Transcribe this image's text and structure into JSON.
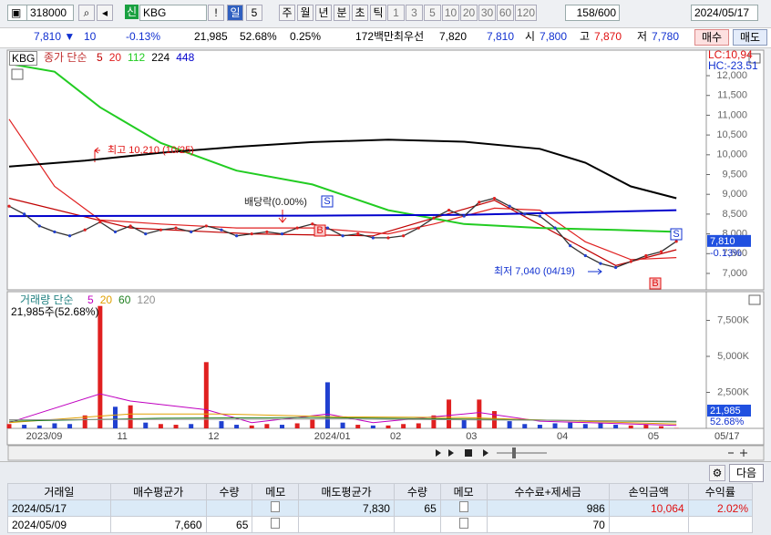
{
  "toolbar": {
    "code": "318000",
    "market": "신",
    "name": "KBG",
    "alert": "!",
    "period": "일",
    "count": "5",
    "periods": [
      "주",
      "월",
      "년",
      "분",
      "초",
      "틱"
    ],
    "intervals": [
      "1",
      "3",
      "5",
      "10",
      "20",
      "30",
      "60",
      "120"
    ],
    "range": "158/600",
    "date": "2024/05/17"
  },
  "quote": {
    "price": "7,810 ▼",
    "change": "10",
    "change_pct": "-0.13%",
    "volume": "21,985",
    "volume_ratio": "52.68%",
    "turnover": "0.25%",
    "amount": "172백만",
    "best_label": "최우선",
    "ask": "7,820",
    "bid": "7,810",
    "open_label": "시",
    "open": "7,800",
    "high_label": "고",
    "high": "7,870",
    "low_label": "저",
    "low": "7,780",
    "buy": "매수",
    "sell": "매도"
  },
  "chart_data": [
    {
      "type": "line",
      "symbol": "KBG",
      "legend_label": "종가 단순",
      "lc": "LC:10,94",
      "hc": "HC:-23.51",
      "categories": [
        null,
        "2023/09",
        null,
        null,
        null,
        null,
        null,
        "11",
        null,
        null,
        null,
        null,
        null,
        "12",
        null,
        null,
        null,
        null,
        null,
        null,
        "2024/01",
        null,
        null,
        null,
        null,
        "02",
        null,
        null,
        null,
        null,
        "03",
        null,
        null,
        null,
        null,
        null,
        "04",
        null,
        null,
        null,
        null,
        null,
        "05",
        null,
        null
      ],
      "end_label": "05/17",
      "values": [
        8700,
        8500,
        8200,
        8050,
        7950,
        8100,
        8300,
        8050,
        8200,
        8000,
        8100,
        8150,
        8050,
        8200,
        8100,
        7950,
        8000,
        8050,
        8000,
        8150,
        8250,
        8150,
        7950,
        8000,
        7900,
        7900,
        7950,
        8150,
        8400,
        8600,
        8450,
        8800,
        8900,
        8700,
        8500,
        8450,
        8150,
        7700,
        7450,
        7250,
        7150,
        7300,
        7450,
        7550,
        7810
      ],
      "color": "#333333",
      "series": [
        {
          "name": "5",
          "color": "#c00000",
          "x": [
            0,
            8,
            16,
            24,
            32,
            40,
            44
          ],
          "values": [
            8900,
            8150,
            8000,
            7950,
            8850,
            7200,
            7600
          ]
        },
        {
          "name": "20",
          "color": "#e02020",
          "x": [
            0,
            3,
            6,
            10,
            15,
            20,
            25,
            28,
            32,
            35,
            38,
            41,
            44
          ],
          "values": [
            10900,
            9200,
            8350,
            8250,
            8150,
            8150,
            8000,
            8250,
            8650,
            8600,
            7800,
            7350,
            7400
          ]
        },
        {
          "name": "112",
          "color": "#22cc22",
          "x": [
            0,
            3,
            6,
            10,
            15,
            20,
            25,
            30,
            35,
            40,
            44
          ],
          "values": [
            12300,
            12100,
            11200,
            10300,
            9600,
            9250,
            8600,
            8250,
            8150,
            8100,
            8050
          ]
        },
        {
          "name": "224",
          "color": "#000000",
          "x": [
            0,
            5,
            10,
            15,
            20,
            25,
            30,
            35,
            38,
            41,
            44
          ],
          "values": [
            9700,
            9850,
            10050,
            10200,
            10320,
            10380,
            10330,
            10150,
            9800,
            9200,
            8900
          ]
        },
        {
          "name": "448",
          "color": "#0000cc",
          "x": [
            0,
            20,
            30,
            44
          ],
          "values": [
            8450,
            8460,
            8480,
            8600
          ]
        }
      ],
      "ylim": [
        6585,
        12600
      ],
      "yticks": [
        {
          "value": 7000,
          "label": "7,000"
        },
        {
          "value": 7500,
          "label": "7,500"
        },
        {
          "value": 8000,
          "label": "8,000"
        },
        {
          "value": 8500,
          "label": "8,500"
        },
        {
          "value": 9000,
          "label": "9,000"
        },
        {
          "value": 9500,
          "label": "9,500"
        },
        {
          "value": 10000,
          "label": "10,000"
        },
        {
          "value": 10500,
          "label": "10,500"
        },
        {
          "value": 11000,
          "label": "11,000"
        },
        {
          "value": 11500,
          "label": "11,500"
        },
        {
          "value": 12000,
          "label": "12,000"
        }
      ],
      "last_label": "7,810",
      "last_change": "-0.13%",
      "annotations": [
        "최고 10,210 (10/25)",
        "배당락(0.00%)",
        "최저 7,040 (04/19)"
      ],
      "signals": [
        "S",
        "B",
        "B",
        "S"
      ]
    },
    {
      "type": "bar",
      "legend_label": "거래량 단순",
      "summary": "21,985주(52.68%)",
      "values": [
        300000,
        250000,
        200000,
        350000,
        300000,
        900000,
        8500000,
        1500000,
        1600000,
        400000,
        300000,
        250000,
        300000,
        4600000,
        500000,
        250000,
        200000,
        300000,
        250000,
        350000,
        600000,
        3200000,
        400000,
        250000,
        200000,
        200000,
        300000,
        350000,
        900000,
        2000000,
        600000,
        2000000,
        1200000,
        500000,
        300000,
        250000,
        350000,
        400000,
        300000,
        350000,
        250000,
        200000,
        250000,
        150000,
        21985
      ],
      "up_color": "#e02020",
      "down_color": "#2040d0",
      "series": [
        {
          "name": "5",
          "color": "#c000c0",
          "x": [
            0,
            6,
            8,
            13,
            16,
            21,
            24,
            29,
            31,
            35,
            44
          ],
          "values": [
            400000,
            2400000,
            1900000,
            1300000,
            400000,
            1000000,
            400000,
            900000,
            1100000,
            500000,
            200000
          ]
        },
        {
          "name": "20",
          "color": "#e0a000",
          "x": [
            0,
            8,
            14,
            22,
            30,
            36,
            44
          ],
          "values": [
            400000,
            1000000,
            1000000,
            800000,
            750000,
            550000,
            300000
          ]
        },
        {
          "name": "60",
          "color": "#208020",
          "x": [
            0,
            10,
            20,
            30,
            44
          ],
          "values": [
            500000,
            700000,
            750000,
            650000,
            450000
          ]
        },
        {
          "name": "120",
          "color": "#909090",
          "x": [
            0,
            22,
            44
          ],
          "values": [
            600000,
            650000,
            500000
          ]
        }
      ],
      "ylim": [
        0,
        9367000
      ],
      "yticks": [
        {
          "value": 2500000,
          "label": "2,500K"
        },
        {
          "value": 5000000,
          "label": "5,000K"
        },
        {
          "value": 7500000,
          "label": "7,500K"
        }
      ],
      "last_label": "21,985",
      "last_pct": "52.68%"
    }
  ],
  "table": {
    "next": "다음",
    "headers": [
      "거래일",
      "매수평균가",
      "수량",
      "메모",
      "매도평균가",
      "수량",
      "메모",
      "수수료+제세금",
      "손익금액",
      "수익률"
    ],
    "rows": [
      [
        "2024/05/17",
        null,
        null,
        null,
        "7,830",
        "65",
        null,
        "986",
        "10,064",
        "2.02%"
      ],
      [
        "2024/05/09",
        "7,660",
        "65",
        null,
        null,
        null,
        null,
        "70",
        null,
        null
      ]
    ]
  }
}
